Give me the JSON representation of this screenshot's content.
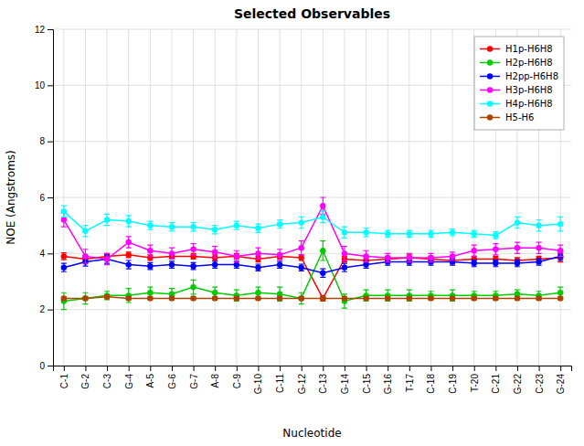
{
  "chart_data": {
    "type": "line",
    "title": "Selected Observables",
    "xlabel": "Nucleotide",
    "ylabel": "NOE (Angstroms)",
    "categories": [
      "C-1",
      "G-2",
      "C-3",
      "G-4",
      "A-5",
      "G-6",
      "G-7",
      "A-8",
      "C-9",
      "G-10",
      "C-11",
      "G-12",
      "C-13",
      "G-14",
      "C-15",
      "G-16",
      "T-17",
      "C-18",
      "C-19",
      "T-20",
      "C-21",
      "G-22",
      "C-23",
      "G-24"
    ],
    "ylim": [
      0,
      12
    ],
    "yticks": [
      0,
      2,
      4,
      6,
      8,
      10,
      12
    ],
    "grid": true,
    "legend": "upper right",
    "marker": "circle",
    "series": [
      {
        "name": "H1p-H6H8",
        "color": "#ff0000",
        "values": [
          3.9,
          3.8,
          3.9,
          3.95,
          3.85,
          3.9,
          3.9,
          3.85,
          3.9,
          3.8,
          3.9,
          3.85,
          2.4,
          3.8,
          3.75,
          3.8,
          3.85,
          3.8,
          3.75,
          3.8,
          3.8,
          3.75,
          3.8,
          3.85
        ],
        "errors": [
          0.12,
          0.12,
          0.1,
          0.1,
          0.1,
          0.1,
          0.1,
          0.1,
          0.1,
          0.1,
          0.1,
          0.1,
          0.1,
          0.1,
          0.1,
          0.1,
          0.1,
          0.1,
          0.1,
          0.1,
          0.1,
          0.1,
          0.1,
          0.15
        ]
      },
      {
        "name": "H2p-H6H8",
        "color": "#00cc00",
        "values": [
          2.3,
          2.4,
          2.5,
          2.5,
          2.6,
          2.55,
          2.8,
          2.6,
          2.5,
          2.6,
          2.55,
          2.4,
          4.1,
          2.3,
          2.5,
          2.5,
          2.5,
          2.5,
          2.5,
          2.5,
          2.5,
          2.55,
          2.5,
          2.6
        ],
        "errors": [
          0.3,
          0.2,
          0.15,
          0.25,
          0.2,
          0.2,
          0.25,
          0.2,
          0.2,
          0.2,
          0.25,
          0.2,
          0.35,
          0.25,
          0.2,
          0.2,
          0.2,
          0.15,
          0.2,
          0.15,
          0.15,
          0.15,
          0.15,
          0.2
        ]
      },
      {
        "name": "H2pp-H6H8",
        "color": "#0000ff",
        "values": [
          3.5,
          3.7,
          3.8,
          3.6,
          3.55,
          3.6,
          3.55,
          3.6,
          3.6,
          3.5,
          3.6,
          3.5,
          3.3,
          3.5,
          3.6,
          3.7,
          3.7,
          3.7,
          3.7,
          3.65,
          3.65,
          3.65,
          3.7,
          3.9
        ],
        "errors": [
          0.15,
          0.15,
          0.15,
          0.15,
          0.12,
          0.12,
          0.12,
          0.12,
          0.12,
          0.12,
          0.12,
          0.12,
          0.15,
          0.15,
          0.12,
          0.12,
          0.12,
          0.12,
          0.12,
          0.12,
          0.12,
          0.12,
          0.12,
          0.15
        ]
      },
      {
        "name": "H3p-H6H8",
        "color": "#ff00ff",
        "values": [
          5.2,
          3.9,
          3.8,
          4.4,
          4.1,
          4.0,
          4.15,
          4.05,
          3.9,
          4.0,
          3.95,
          4.2,
          5.7,
          4.0,
          3.9,
          3.85,
          3.85,
          3.85,
          3.9,
          4.1,
          4.15,
          4.2,
          4.2,
          4.1
        ],
        "errors": [
          0.25,
          0.25,
          0.2,
          0.2,
          0.2,
          0.2,
          0.2,
          0.2,
          0.2,
          0.2,
          0.2,
          0.25,
          0.3,
          0.25,
          0.2,
          0.15,
          0.15,
          0.15,
          0.15,
          0.2,
          0.2,
          0.2,
          0.2,
          0.2
        ]
      },
      {
        "name": "H4p-H6H8",
        "color": "#00ffff",
        "values": [
          5.5,
          4.8,
          5.2,
          5.15,
          5.0,
          4.95,
          4.95,
          4.85,
          5.0,
          4.9,
          5.05,
          5.1,
          5.3,
          4.75,
          4.75,
          4.7,
          4.7,
          4.7,
          4.75,
          4.7,
          4.65,
          5.1,
          5.0,
          5.05
        ],
        "errors": [
          0.2,
          0.2,
          0.2,
          0.2,
          0.15,
          0.15,
          0.15,
          0.15,
          0.15,
          0.15,
          0.15,
          0.2,
          0.2,
          0.2,
          0.15,
          0.12,
          0.12,
          0.12,
          0.12,
          0.12,
          0.12,
          0.2,
          0.2,
          0.25
        ]
      },
      {
        "name": "H5-H6",
        "color": "#aa4400",
        "values": [
          2.4,
          2.4,
          2.45,
          2.4,
          2.4,
          2.4,
          2.4,
          2.4,
          2.4,
          2.4,
          2.4,
          2.4,
          2.4,
          2.4,
          2.4,
          2.4,
          2.4,
          2.4,
          2.4,
          2.4,
          2.4,
          2.4,
          2.4,
          2.4
        ],
        "errors": [
          0.05,
          0.05,
          0.05,
          0.05,
          0.05,
          0.05,
          0.05,
          0.05,
          0.05,
          0.05,
          0.05,
          0.05,
          0.05,
          0.05,
          0.05,
          0.05,
          0.05,
          0.05,
          0.05,
          0.05,
          0.05,
          0.05,
          0.05,
          0.05
        ]
      }
    ]
  }
}
